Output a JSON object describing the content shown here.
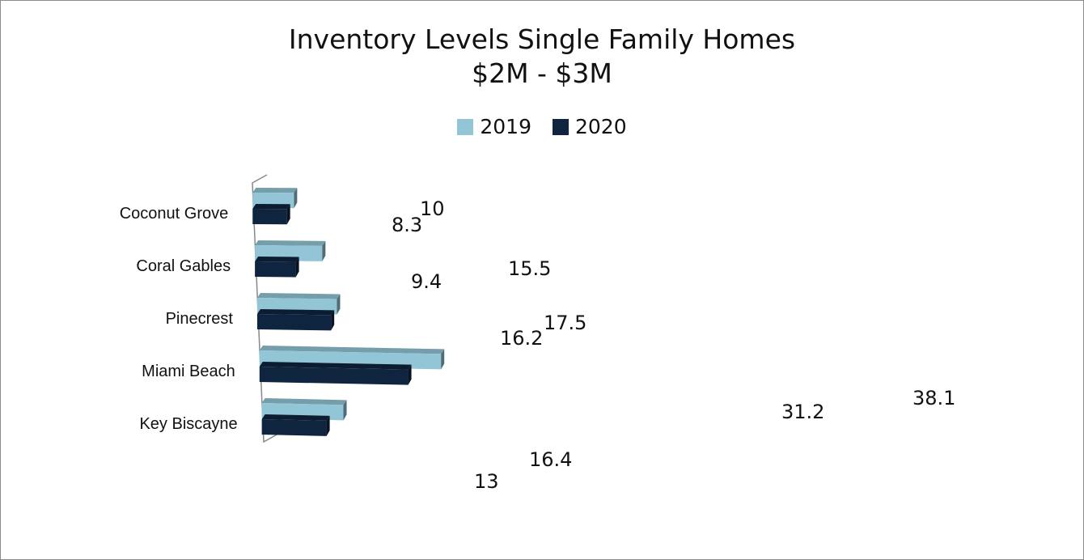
{
  "chart_data": {
    "type": "bar",
    "orientation": "horizontal",
    "title": "Inventory Levels Single Family Homes",
    "subtitle": "$2M - $3M",
    "categories": [
      "Coconut Grove",
      "Coral Gables",
      "Pinecrest",
      "Miami Beach",
      "Key Biscayne"
    ],
    "series": [
      {
        "name": "2019",
        "values": [
          10,
          15.5,
          17.5,
          38.1,
          16.4
        ],
        "color": "#92c5d6"
      },
      {
        "name": "2020",
        "values": [
          8.3,
          9.4,
          16.2,
          31.2,
          13
        ],
        "color": "#0f243e"
      }
    ],
    "value_labels": {
      "2019": [
        "10",
        "15.5",
        "17.5",
        "38.1",
        "16.4"
      ],
      "2020": [
        "8.3",
        "9.4",
        "16.2",
        "31.2",
        "13"
      ]
    },
    "legend_position": "top",
    "grid": false,
    "style": "3d"
  }
}
